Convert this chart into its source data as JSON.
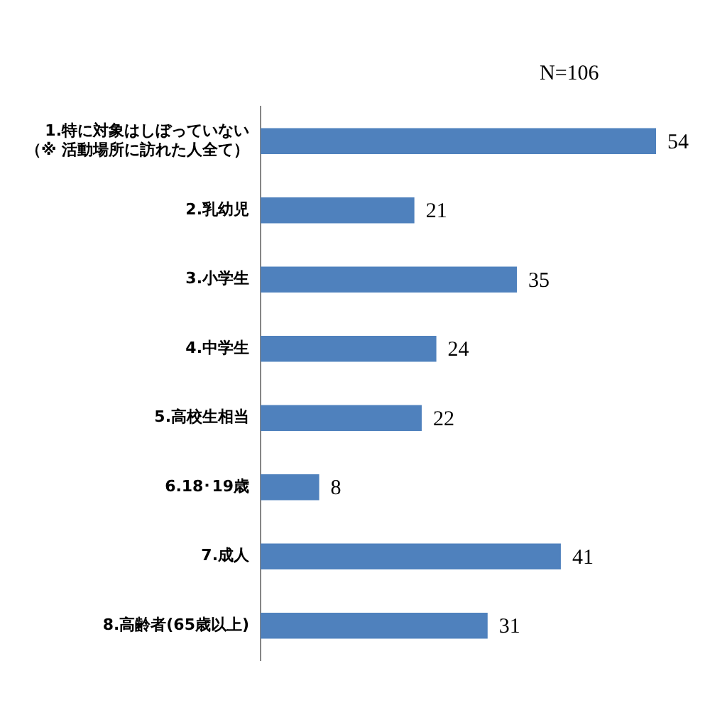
{
  "chart_data": {
    "type": "bar",
    "orientation": "horizontal",
    "tick_labels": "y",
    "data_labels": true,
    "grid": false,
    "legend": false,
    "annotations": [
      "N=106"
    ],
    "categories": [
      "1.特に対象はしぼっていない（※ 活動場所に訪れた人全て）",
      "2.乳幼児",
      "3.小学生",
      "4.中学生",
      "5.高校生相当",
      "6.18･19歳",
      "7.成人",
      "8.高齢者(65歳以上)"
    ],
    "values": [
      54,
      21,
      35,
      24,
      22,
      8,
      41,
      31
    ],
    "color": "#4f81bd"
  }
}
